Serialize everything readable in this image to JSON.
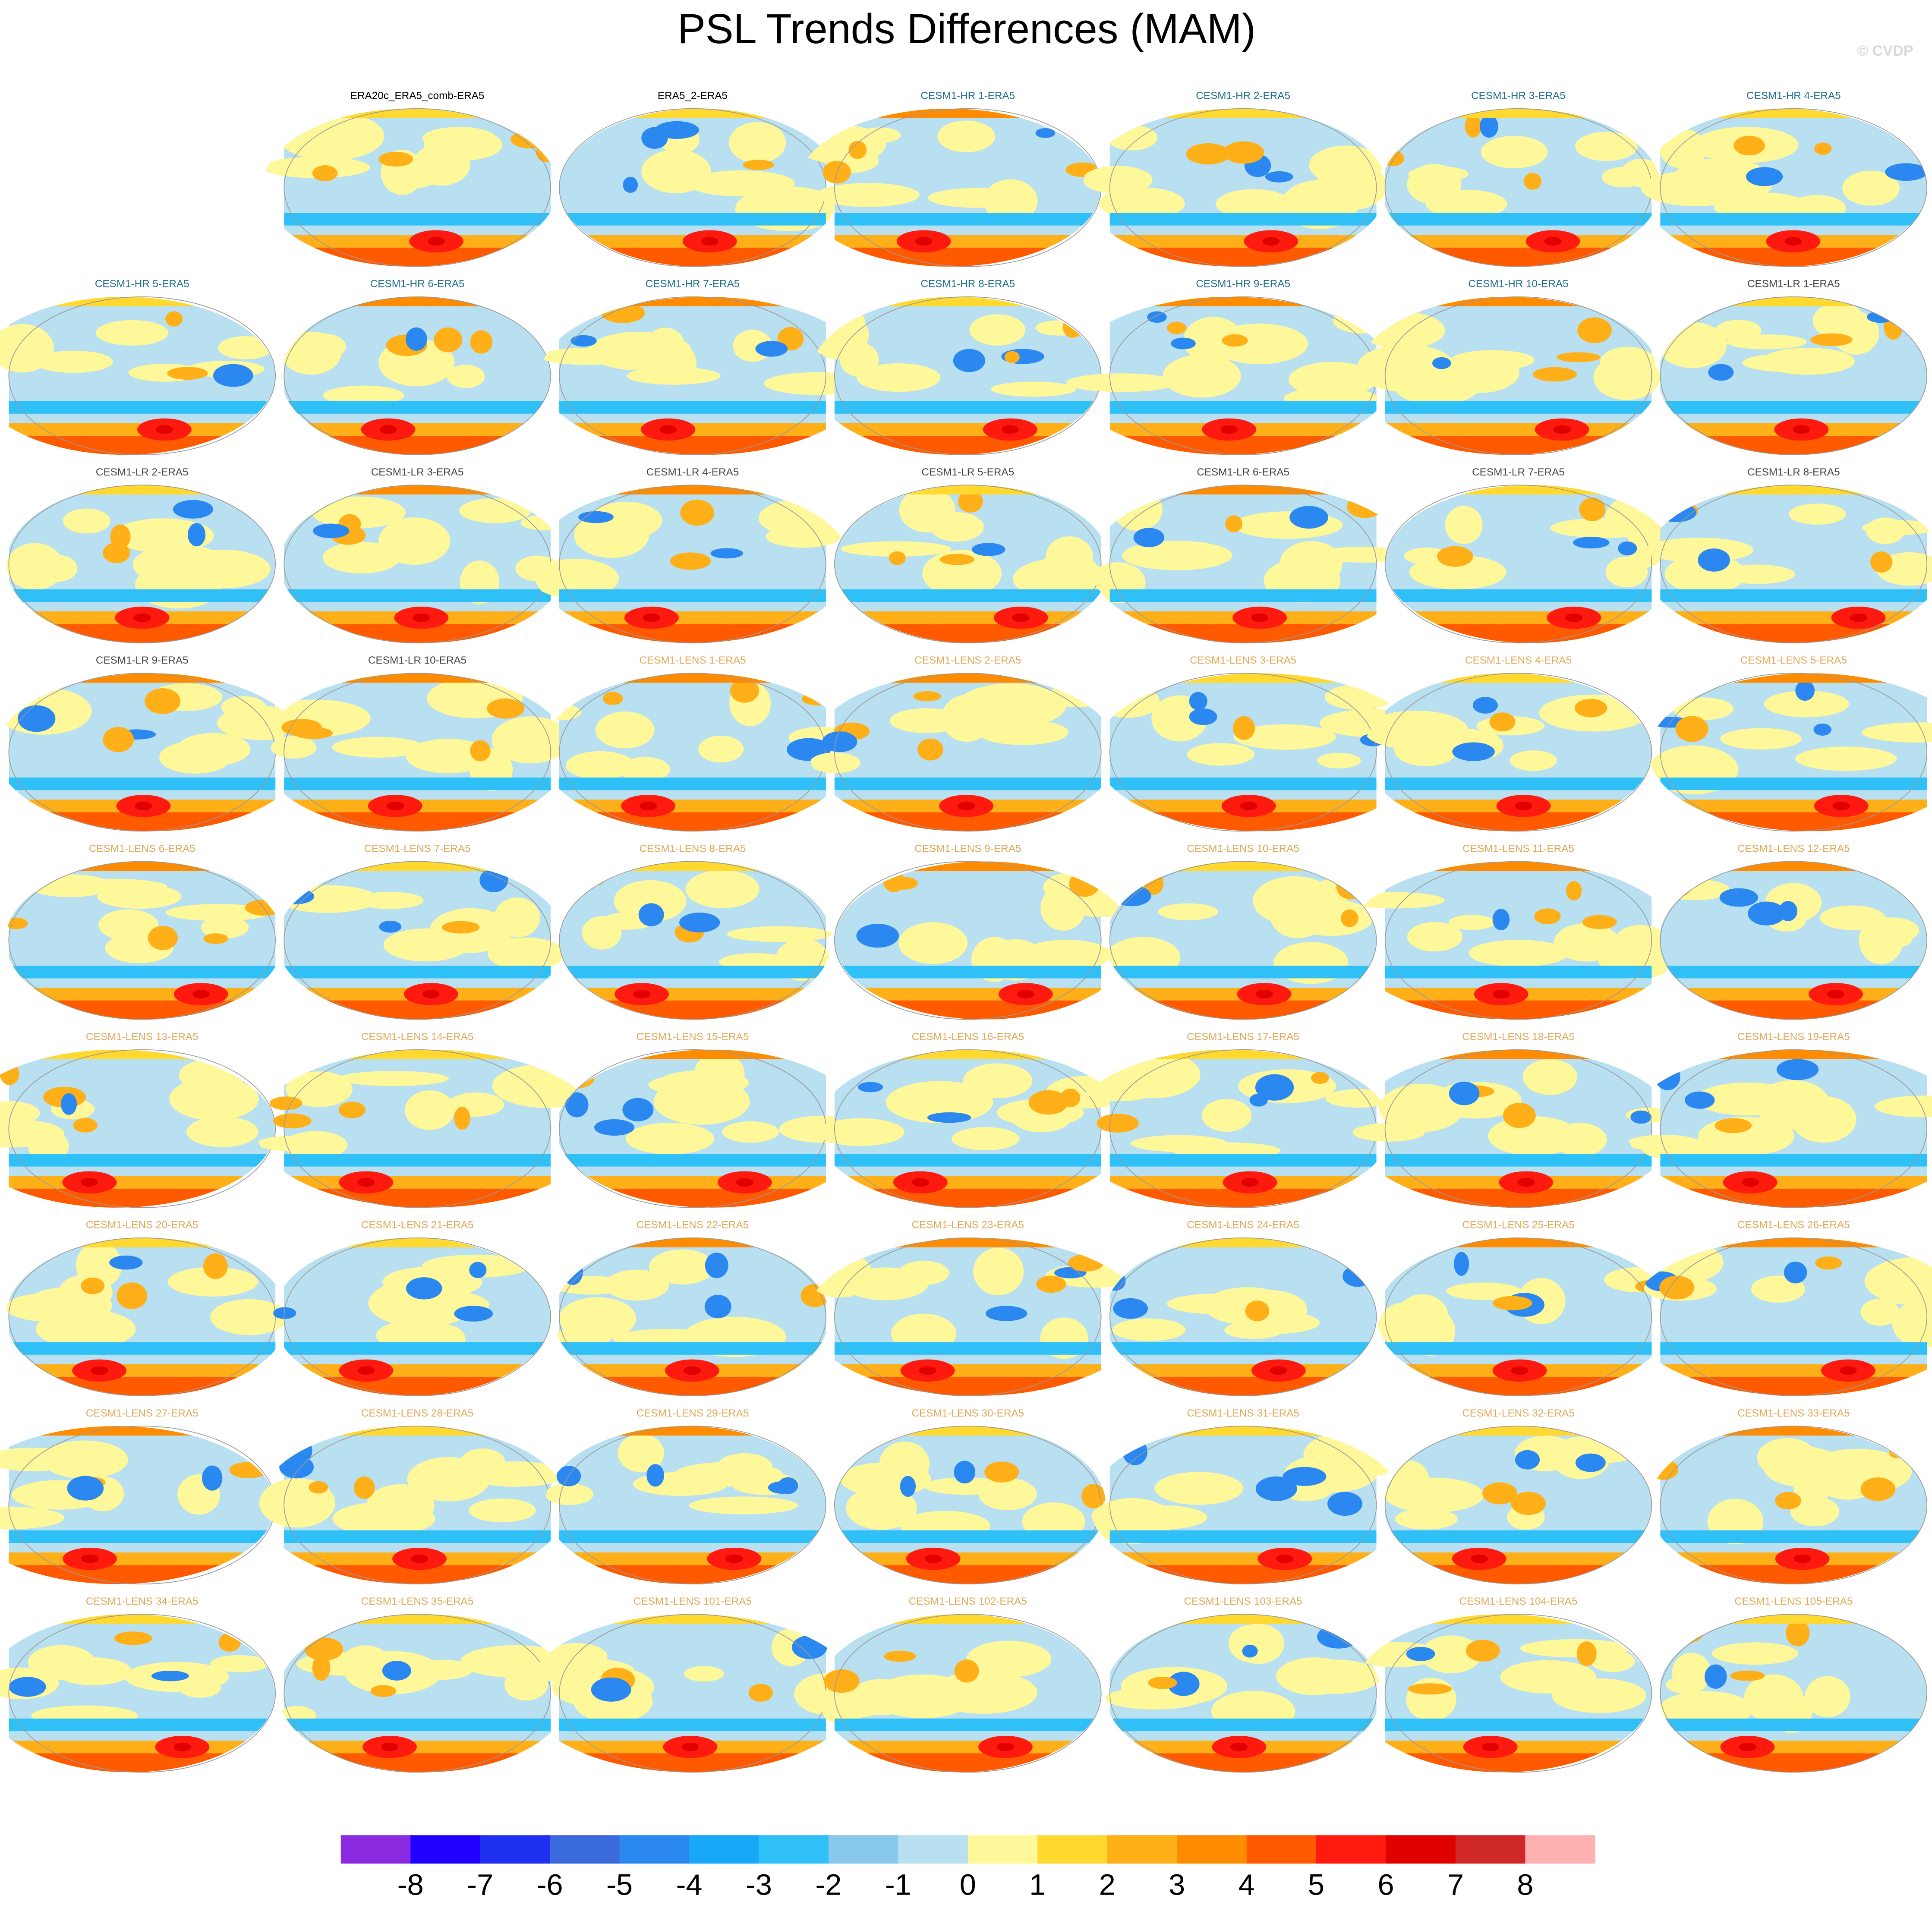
{
  "chart_data": {
    "type": "map-panels",
    "title": "PSL Trends Differences (MAM)",
    "watermark": "© CVDP",
    "panels": [
      {
        "title": "ERA20c_ERA5_comb-ERA5",
        "color": "#000000"
      },
      {
        "title": "ERA5_2-ERA5",
        "color": "#000000"
      },
      {
        "title": "CESM1-HR 1-ERA5",
        "color": "#1f6e8c"
      },
      {
        "title": "CESM1-HR 2-ERA5",
        "color": "#1f6e8c"
      },
      {
        "title": "CESM1-HR 3-ERA5",
        "color": "#1f6e8c"
      },
      {
        "title": "CESM1-HR 4-ERA5",
        "color": "#1f6e8c"
      },
      {
        "title": "CESM1-HR 5-ERA5",
        "color": "#1f6e8c"
      },
      {
        "title": "CESM1-HR 6-ERA5",
        "color": "#1f6e8c"
      },
      {
        "title": "CESM1-HR 7-ERA5",
        "color": "#1f6e8c"
      },
      {
        "title": "CESM1-HR 8-ERA5",
        "color": "#1f6e8c"
      },
      {
        "title": "CESM1-HR 9-ERA5",
        "color": "#1f6e8c"
      },
      {
        "title": "CESM1-HR 10-ERA5",
        "color": "#1f6e8c"
      },
      {
        "title": "CESM1-LR 1-ERA5",
        "color": "#444444"
      },
      {
        "title": "CESM1-LR 2-ERA5",
        "color": "#444444"
      },
      {
        "title": "CESM1-LR 3-ERA5",
        "color": "#444444"
      },
      {
        "title": "CESM1-LR 4-ERA5",
        "color": "#444444"
      },
      {
        "title": "CESM1-LR 5-ERA5",
        "color": "#444444"
      },
      {
        "title": "CESM1-LR 6-ERA5",
        "color": "#444444"
      },
      {
        "title": "CESM1-LR 7-ERA5",
        "color": "#444444"
      },
      {
        "title": "CESM1-LR 8-ERA5",
        "color": "#444444"
      },
      {
        "title": "CESM1-LR 9-ERA5",
        "color": "#444444"
      },
      {
        "title": "CESM1-LR 10-ERA5",
        "color": "#444444"
      },
      {
        "title": "CESM1-LENS 1-ERA5",
        "color": "#e3a857"
      },
      {
        "title": "CESM1-LENS 2-ERA5",
        "color": "#e3a857"
      },
      {
        "title": "CESM1-LENS 3-ERA5",
        "color": "#e3a857"
      },
      {
        "title": "CESM1-LENS 4-ERA5",
        "color": "#e3a857"
      },
      {
        "title": "CESM1-LENS 5-ERA5",
        "color": "#e3a857"
      },
      {
        "title": "CESM1-LENS 6-ERA5",
        "color": "#e3a857"
      },
      {
        "title": "CESM1-LENS 7-ERA5",
        "color": "#e3a857"
      },
      {
        "title": "CESM1-LENS 8-ERA5",
        "color": "#e3a857"
      },
      {
        "title": "CESM1-LENS 9-ERA5",
        "color": "#e3a857"
      },
      {
        "title": "CESM1-LENS 10-ERA5",
        "color": "#e3a857"
      },
      {
        "title": "CESM1-LENS 11-ERA5",
        "color": "#e3a857"
      },
      {
        "title": "CESM1-LENS 12-ERA5",
        "color": "#e3a857"
      },
      {
        "title": "CESM1-LENS 13-ERA5",
        "color": "#e3a857"
      },
      {
        "title": "CESM1-LENS 14-ERA5",
        "color": "#e3a857"
      },
      {
        "title": "CESM1-LENS 15-ERA5",
        "color": "#e3a857"
      },
      {
        "title": "CESM1-LENS 16-ERA5",
        "color": "#e3a857"
      },
      {
        "title": "CESM1-LENS 17-ERA5",
        "color": "#e3a857"
      },
      {
        "title": "CESM1-LENS 18-ERA5",
        "color": "#e3a857"
      },
      {
        "title": "CESM1-LENS 19-ERA5",
        "color": "#e3a857"
      },
      {
        "title": "CESM1-LENS 20-ERA5",
        "color": "#e3a857"
      },
      {
        "title": "CESM1-LENS 21-ERA5",
        "color": "#e3a857"
      },
      {
        "title": "CESM1-LENS 22-ERA5",
        "color": "#e3a857"
      },
      {
        "title": "CESM1-LENS 23-ERA5",
        "color": "#e3a857"
      },
      {
        "title": "CESM1-LENS 24-ERA5",
        "color": "#e3a857"
      },
      {
        "title": "CESM1-LENS 25-ERA5",
        "color": "#e3a857"
      },
      {
        "title": "CESM1-LENS 26-ERA5",
        "color": "#e3a857"
      },
      {
        "title": "CESM1-LENS 27-ERA5",
        "color": "#e3a857"
      },
      {
        "title": "CESM1-LENS 28-ERA5",
        "color": "#e3a857"
      },
      {
        "title": "CESM1-LENS 29-ERA5",
        "color": "#e3a857"
      },
      {
        "title": "CESM1-LENS 30-ERA5",
        "color": "#e3a857"
      },
      {
        "title": "CESM1-LENS 31-ERA5",
        "color": "#e3a857"
      },
      {
        "title": "CESM1-LENS 32-ERA5",
        "color": "#e3a857"
      },
      {
        "title": "CESM1-LENS 33-ERA5",
        "color": "#e3a857"
      },
      {
        "title": "CESM1-LENS 34-ERA5",
        "color": "#e3a857"
      },
      {
        "title": "CESM1-LENS 35-ERA5",
        "color": "#e3a857"
      },
      {
        "title": "CESM1-LENS 101-ERA5",
        "color": "#e3a857"
      },
      {
        "title": "CESM1-LENS 102-ERA5",
        "color": "#e3a857"
      },
      {
        "title": "CESM1-LENS 103-ERA5",
        "color": "#e3a857"
      },
      {
        "title": "CESM1-LENS 104-ERA5",
        "color": "#e3a857"
      },
      {
        "title": "CESM1-LENS 105-ERA5",
        "color": "#e3a857"
      }
    ],
    "colorbar": {
      "levels": [
        -8,
        -7,
        -6,
        -5,
        -4,
        -3,
        -2,
        -1,
        0,
        1,
        2,
        3,
        4,
        5,
        6,
        7,
        8
      ],
      "colors": [
        "#8a2be2",
        "#2000ff",
        "#2030f0",
        "#3a6adc",
        "#2a88f0",
        "#18a8f8",
        "#30c0f8",
        "#88c8ec",
        "#b8e0f0",
        "#fff89a",
        "#ffd830",
        "#ffb018",
        "#ff8c00",
        "#ff5a00",
        "#ff1a10",
        "#e00000",
        "#d02828",
        "#ffb0b0"
      ]
    }
  }
}
